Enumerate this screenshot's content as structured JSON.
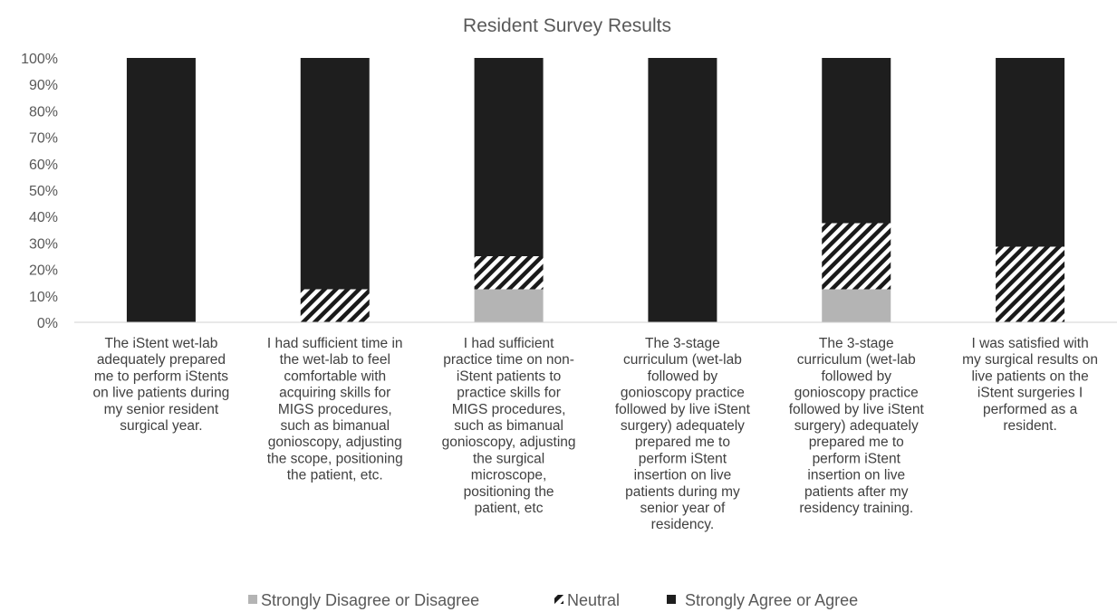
{
  "chart_data": {
    "type": "bar",
    "stacked": "percent",
    "title": "Resident Survey Results",
    "xlabel": "",
    "ylabel": "",
    "ylim": [
      0,
      100
    ],
    "yticks": [
      "0%",
      "10%",
      "20%",
      "30%",
      "40%",
      "50%",
      "60%",
      "70%",
      "80%",
      "90%",
      "100%"
    ],
    "grid": false,
    "legend_position": "bottom",
    "categories": [
      "The iStent wet-lab adequately prepared me to perform iStents on live patients during my senior resident surgical year.",
      "I had sufficient time in the wet-lab to feel comfortable with acquiring skills for MIGS procedures, such as bimanual gonioscopy, adjusting the scope, positioning the patient, etc.",
      "I had sufficient practice time on non-iStent patients to practice skills for MIGS procedures, such as bimanual gonioscopy, adjusting the surgical microscope, positioning the patient, etc",
      "The 3-stage curriculum (wet-lab followed by gonioscopy practice followed by live iStent surgery) adequately prepared me to perform iStent insertion on live patients during my senior year of residency.",
      "The 3-stage curriculum (wet-lab followed by gonioscopy practice followed by live iStent surgery) adequately prepared me to perform iStent insertion on live patients after my residency training.",
      "I was satisfied with my surgical results on live patients on the iStent surgeries I performed as a resident."
    ],
    "category_lines": [
      [
        "The iStent wet-lab",
        "adequately prepared",
        "me to perform iStents",
        "on live patients during",
        "my senior resident",
        "surgical year."
      ],
      [
        "I had sufficient time in",
        "the wet-lab to feel",
        "comfortable with",
        "acquiring skills for",
        "MIGS procedures,",
        "such as bimanual",
        "gonioscopy, adjusting",
        "the scope, positioning",
        "the patient, etc."
      ],
      [
        "I had sufficient",
        "practice time on non-",
        "iStent patients to",
        "practice skills for",
        "MIGS procedures,",
        "such as bimanual",
        "gonioscopy, adjusting",
        "the surgical",
        "microscope,",
        "positioning the",
        "patient, etc"
      ],
      [
        "The 3-stage",
        "curriculum (wet-lab",
        "followed by",
        "gonioscopy practice",
        "followed by live iStent",
        "surgery) adequately",
        "prepared me to",
        "perform iStent",
        "insertion on live",
        "patients during my",
        "senior year of",
        "residency."
      ],
      [
        "The 3-stage",
        "curriculum (wet-lab",
        "followed by",
        "gonioscopy practice",
        "followed by live iStent",
        "surgery) adequately",
        "prepared me to",
        "perform iStent",
        "insertion on live",
        "patients after my",
        "residency training."
      ],
      [
        "I was satisfied with",
        "my surgical results on",
        "live patients on the",
        "iStent surgeries I",
        "performed as a",
        "resident."
      ]
    ],
    "series": [
      {
        "name": "Strongly Disagree or Disagree",
        "color": "#b4b4b4",
        "pattern": "solid",
        "values": [
          0,
          0,
          12.5,
          0,
          12.5,
          0
        ]
      },
      {
        "name": "Neutral",
        "color": "#1a1a1a",
        "pattern": "diagonal-stripes",
        "values": [
          0,
          12.5,
          12.5,
          0,
          25,
          28.6
        ]
      },
      {
        "name": "Strongly Agree or Agree",
        "color": "#1e1e1e",
        "pattern": "solid",
        "values": [
          100,
          87.5,
          75,
          100,
          62.5,
          71.4
        ]
      }
    ]
  }
}
